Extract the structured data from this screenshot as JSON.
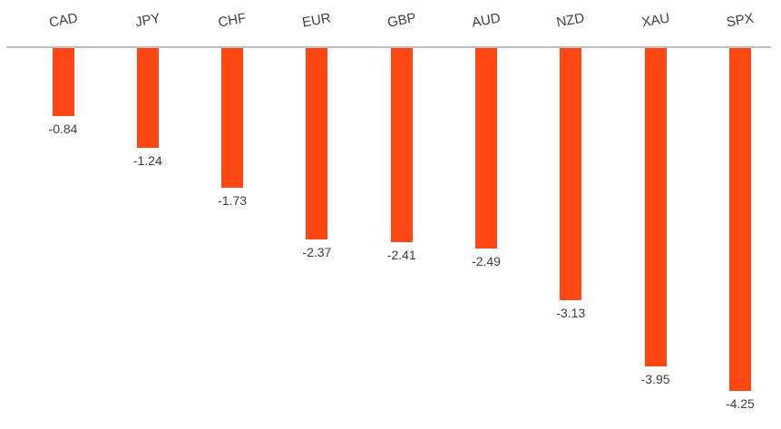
{
  "chart_data": {
    "type": "bar",
    "orientation": "vertical",
    "categories": [
      "CAD",
      "JPY",
      "CHF",
      "EUR",
      "GBP",
      "AUD",
      "NZD",
      "XAU",
      "SPX"
    ],
    "values": [
      -0.84,
      -1.24,
      -1.73,
      -2.37,
      -2.41,
      -2.49,
      -3.13,
      -3.95,
      -4.25
    ],
    "value_labels": [
      "-0.84",
      "-1.24",
      "-1.73",
      "-2.37",
      "-2.41",
      "-2.49",
      "-3.13",
      "-3.95",
      "-4.25"
    ],
    "title": "",
    "xlabel": "",
    "ylabel": "",
    "ylim": [
      -4.5,
      0
    ],
    "grid": "off",
    "legend": "none",
    "baseline": 0,
    "category_label_position": "above-baseline",
    "value_label_position": "below-bar",
    "bar_color": "#FF4713",
    "axis_line_color": "#BFBFBF",
    "text_color": "#404040"
  }
}
